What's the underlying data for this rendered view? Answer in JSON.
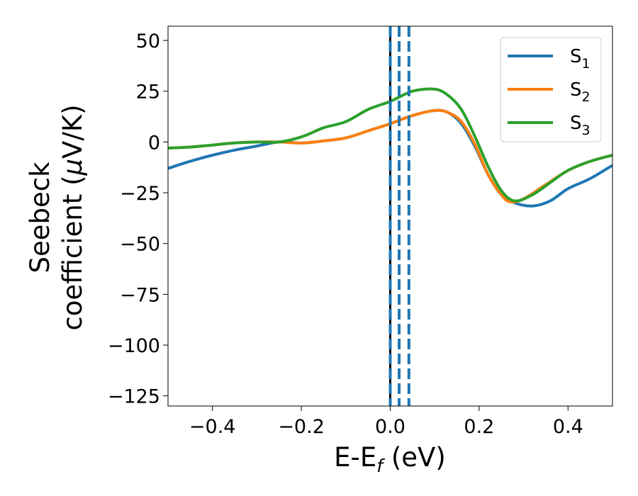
{
  "chart_data": {
    "type": "line",
    "xlabel": {
      "main": "E-E",
      "sub": "f",
      "tail": " (eV)"
    },
    "ylabel": {
      "line1": "Seebeck",
      "line2_pre": "coefficient  (",
      "line2_mu": "μ",
      "line2_post": "V/K)"
    },
    "xlim": [
      -0.5,
      0.5
    ],
    "ylim": [
      -130,
      57
    ],
    "xticks": [
      -0.4,
      -0.2,
      0.0,
      0.2,
      0.4
    ],
    "xtick_labels": [
      "−0.4",
      "−0.2",
      "0.0",
      "0.2",
      "0.4"
    ],
    "yticks": [
      50,
      25,
      0,
      -25,
      -50,
      -75,
      -100,
      -125
    ],
    "ytick_labels": [
      "50",
      "25",
      "0",
      "−25",
      "−50",
      "−75",
      "−100",
      "−125"
    ],
    "grid": false,
    "legend_position": "top-right",
    "vertical_lines": [
      {
        "x": 0.0,
        "color": "#000000",
        "style": "solid"
      },
      {
        "x": 0.0,
        "color": "#1f77b4",
        "style": "dashed"
      },
      {
        "x": 0.02,
        "color": "#1f77b4",
        "style": "dashed"
      },
      {
        "x": 0.042,
        "color": "#1f77b4",
        "style": "dashed"
      }
    ],
    "series": [
      {
        "name": "S",
        "sub": "1",
        "color": "#1f77b4",
        "points": [
          [
            -0.5,
            -13
          ],
          [
            -0.45,
            -9.5
          ],
          [
            -0.4,
            -6.5
          ],
          [
            -0.35,
            -4
          ],
          [
            -0.3,
            -2
          ],
          [
            -0.25,
            0
          ],
          [
            -0.2,
            -0.5
          ],
          [
            -0.15,
            0.5
          ],
          [
            -0.1,
            2
          ],
          [
            -0.05,
            5.5
          ],
          [
            0.0,
            9
          ],
          [
            0.05,
            13
          ],
          [
            0.1,
            15.5
          ],
          [
            0.13,
            14.5
          ],
          [
            0.16,
            9
          ],
          [
            0.19,
            -2
          ],
          [
            0.22,
            -16
          ],
          [
            0.25,
            -26
          ],
          [
            0.28,
            -30
          ],
          [
            0.32,
            -31.5
          ],
          [
            0.36,
            -29
          ],
          [
            0.4,
            -23
          ],
          [
            0.45,
            -18
          ],
          [
            0.5,
            -11.5
          ]
        ]
      },
      {
        "name": "S",
        "sub": "2",
        "color": "#ff7f0e",
        "points": [
          [
            -0.5,
            -3
          ],
          [
            -0.45,
            -2.5
          ],
          [
            -0.4,
            -1.5
          ],
          [
            -0.35,
            -0.5
          ],
          [
            -0.3,
            0
          ],
          [
            -0.25,
            0
          ],
          [
            -0.2,
            -0.5
          ],
          [
            -0.15,
            0.5
          ],
          [
            -0.1,
            2
          ],
          [
            -0.05,
            5.5
          ],
          [
            0.0,
            9
          ],
          [
            0.05,
            13
          ],
          [
            0.1,
            15.5
          ],
          [
            0.13,
            14.5
          ],
          [
            0.16,
            10
          ],
          [
            0.19,
            -1
          ],
          [
            0.22,
            -16
          ],
          [
            0.25,
            -26
          ],
          [
            0.27,
            -29.5
          ],
          [
            0.3,
            -28
          ],
          [
            0.35,
            -21
          ],
          [
            0.4,
            -14
          ],
          [
            0.45,
            -9.5
          ],
          [
            0.5,
            -6.5
          ]
        ]
      },
      {
        "name": "S",
        "sub": "3",
        "color": "#2ca02c",
        "points": [
          [
            -0.5,
            -3
          ],
          [
            -0.45,
            -2.5
          ],
          [
            -0.4,
            -1.5
          ],
          [
            -0.35,
            -0.5
          ],
          [
            -0.3,
            0
          ],
          [
            -0.25,
            0
          ],
          [
            -0.2,
            2.5
          ],
          [
            -0.15,
            7
          ],
          [
            -0.1,
            10
          ],
          [
            -0.05,
            16
          ],
          [
            0.0,
            20
          ],
          [
            0.05,
            25
          ],
          [
            0.1,
            26
          ],
          [
            0.13,
            23
          ],
          [
            0.16,
            16
          ],
          [
            0.19,
            3
          ],
          [
            0.22,
            -12
          ],
          [
            0.25,
            -24
          ],
          [
            0.28,
            -29
          ],
          [
            0.32,
            -26
          ],
          [
            0.36,
            -20
          ],
          [
            0.4,
            -14
          ],
          [
            0.45,
            -9.5
          ],
          [
            0.5,
            -6.5
          ]
        ]
      }
    ]
  }
}
